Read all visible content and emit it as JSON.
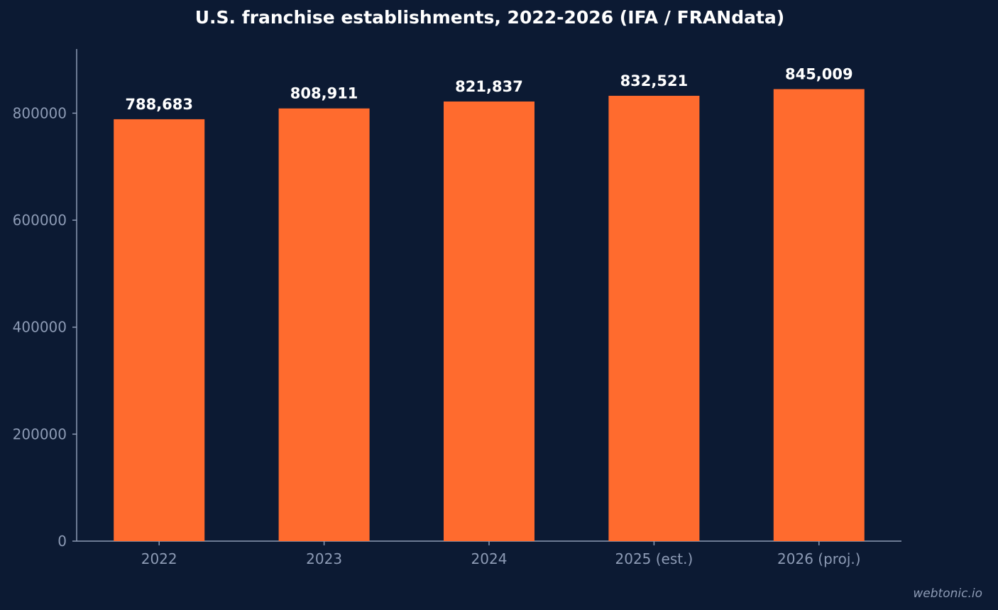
{
  "chart_data": {
    "type": "bar",
    "title": "U.S. franchise establishments, 2022-2026 (IFA / FRANdata)",
    "xlabel": "",
    "ylabel": "",
    "categories": [
      "2022",
      "2023",
      "2024",
      "2025 (est.)",
      "2026 (proj.)"
    ],
    "values": [
      788683,
      808911,
      821837,
      832521,
      845009
    ],
    "value_labels": [
      "788,683",
      "808,911",
      "821,837",
      "832,521",
      "845,009"
    ],
    "yticks": [
      0,
      200000,
      400000,
      600000,
      800000
    ],
    "ytick_labels": [
      "0",
      "200000",
      "400000",
      "600000",
      "800000"
    ],
    "ylim": [
      0,
      920000
    ],
    "grid": false,
    "colors": {
      "background": "#0c1a33",
      "bar": "#ff6b2e",
      "axis": "#8d9bb5",
      "tick_text": "#8d9bb5",
      "title_text": "#ffffff",
      "label_text": "#ffffff"
    }
  },
  "watermark": "webtonic.io"
}
